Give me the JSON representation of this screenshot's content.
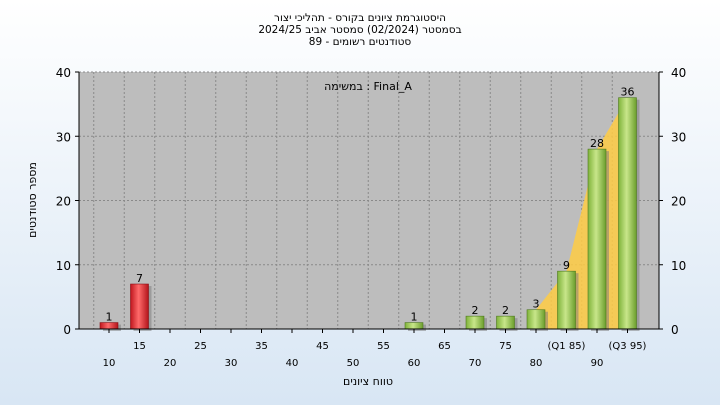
{
  "chart_data": {
    "type": "bar",
    "title_lines": [
      "היסטוגרמת ציונים בקורס - תהליכי יצור",
      "בסמסטר  (02/2024)  סמסטר אביב 2024/25",
      "סטודנטים רשומים - 89"
    ],
    "annotation": "במשימה : Final_A",
    "xlabel": "טווח ציונים",
    "ylabel": "מספר סטודנטים",
    "ylim": [
      0,
      40
    ],
    "yticks": [
      "0",
      "10",
      "20",
      "30",
      "40"
    ],
    "categories": [
      "10",
      "15",
      "20",
      "25",
      "30",
      "35",
      "40",
      "45",
      "50",
      "55",
      "60",
      "65",
      "70",
      "75",
      "80",
      "(Q1 85)",
      "90",
      "(Q3 95)"
    ],
    "values": [
      1,
      7,
      0,
      0,
      0,
      0,
      0,
      0,
      0,
      0,
      1,
      0,
      2,
      2,
      3,
      9,
      28,
      36
    ],
    "bar_colors": [
      "#e0333a",
      "#e0333a",
      "#9acd4e",
      "#9acd4e",
      "#9acd4e",
      "#9acd4e",
      "#9acd4e",
      "#9acd4e",
      "#9acd4e",
      "#9acd4e",
      "#9acd4e",
      "#9acd4e",
      "#9acd4e",
      "#9acd4e",
      "#9acd4e",
      "#9acd4e",
      "#9acd4e",
      "#9acd4e"
    ],
    "area_start_index": 14,
    "area_color": "#ffcc44",
    "plot_background": "#bdbdbd",
    "page_background": "#d8e6f4",
    "grid": true
  }
}
